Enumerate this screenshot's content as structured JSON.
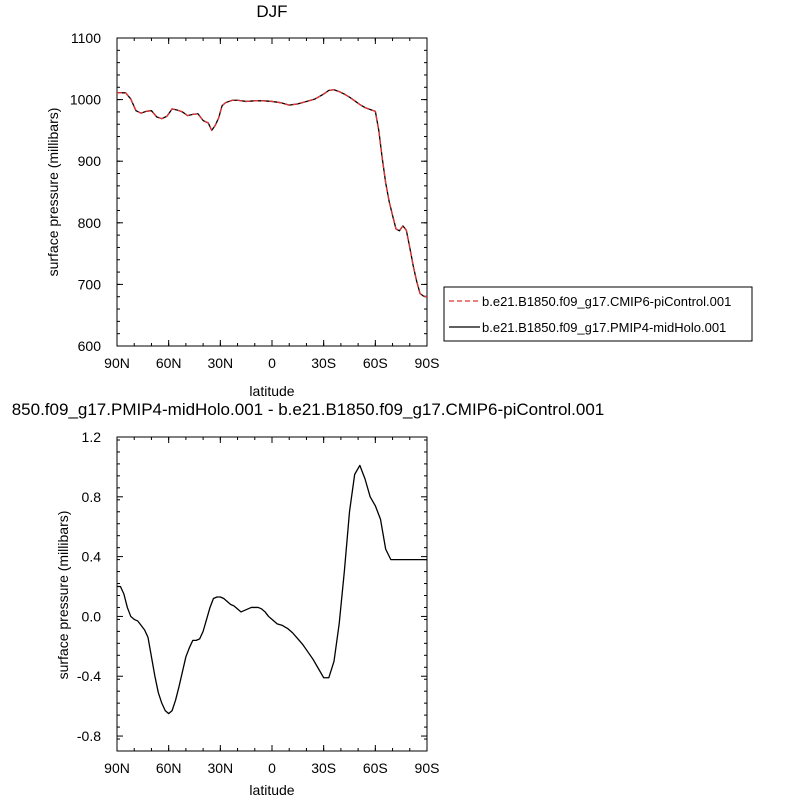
{
  "chart_data": [
    {
      "type": "line",
      "title": "DJF",
      "xlabel": "latitude",
      "ylabel": "surface pressure (millibars)",
      "xlim": [
        90,
        -90
      ],
      "ylim": [
        600,
        1100
      ],
      "x_ticks": [
        {
          "value": 90,
          "label": "90N"
        },
        {
          "value": 60,
          "label": "60N"
        },
        {
          "value": 30,
          "label": "30N"
        },
        {
          "value": 0,
          "label": "0"
        },
        {
          "value": -30,
          "label": "30S"
        },
        {
          "value": -60,
          "label": "60S"
        },
        {
          "value": -90,
          "label": "90S"
        }
      ],
      "y_ticks": [
        {
          "value": 600,
          "label": "600"
        },
        {
          "value": 700,
          "label": "700"
        },
        {
          "value": 800,
          "label": "800"
        },
        {
          "value": 900,
          "label": "900"
        },
        {
          "value": 1000,
          "label": "1000"
        },
        {
          "value": 1100,
          "label": "1100"
        }
      ],
      "grid": false,
      "legend_position": "right",
      "series": [
        {
          "name": "b.e21.B1850.f09_g17.CMIP6-piControl.001",
          "color": "#e53030",
          "dash": "dashed",
          "x": [
            90,
            85,
            82,
            79,
            76,
            73,
            70,
            67,
            64,
            61,
            58,
            55,
            52,
            49,
            46,
            43,
            40,
            37,
            35,
            33,
            31,
            29,
            27,
            25,
            23,
            20,
            15,
            10,
            5,
            0,
            -5,
            -10,
            -15,
            -20,
            -25,
            -30,
            -33,
            -36,
            -39,
            -42,
            -45,
            -48,
            -51,
            -54,
            -57,
            -60,
            -62,
            -64,
            -66,
            -68,
            -70,
            -72,
            -74,
            -76,
            -78,
            -80,
            -82,
            -84,
            -86,
            -88,
            -90
          ],
          "y": [
            1011,
            1011,
            1001,
            982,
            978,
            981,
            982,
            972,
            969,
            973,
            985,
            983,
            980,
            974,
            976,
            977,
            966,
            962,
            950,
            958,
            970,
            990,
            995,
            997,
            999,
            999,
            997,
            998,
            998,
            997,
            995,
            991,
            993,
            997,
            1001,
            1009,
            1015,
            1016,
            1013,
            1009,
            1004,
            998,
            992,
            987,
            984,
            981,
            950,
            905,
            865,
            835,
            812,
            790,
            787,
            795,
            788,
            760,
            730,
            705,
            685,
            681,
            680
          ]
        },
        {
          "name": "b.e21.B1850.f09_g17.PMIP4-midHolo.001",
          "color": "#000000",
          "dash": "solid",
          "x": [
            90,
            85,
            82,
            79,
            76,
            73,
            70,
            67,
            64,
            61,
            58,
            55,
            52,
            49,
            46,
            43,
            40,
            37,
            35,
            33,
            31,
            29,
            27,
            25,
            23,
            20,
            15,
            10,
            5,
            0,
            -5,
            -10,
            -15,
            -20,
            -25,
            -30,
            -33,
            -36,
            -39,
            -42,
            -45,
            -48,
            -51,
            -54,
            -57,
            -60,
            -62,
            -64,
            -66,
            -68,
            -70,
            -72,
            -74,
            -76,
            -78,
            -80,
            -82,
            -84,
            -86,
            -88,
            -90
          ],
          "y": [
            1011,
            1011,
            1001,
            982,
            978,
            981,
            982,
            972,
            969,
            973,
            985,
            983,
            980,
            974,
            976,
            977,
            966,
            962,
            950,
            958,
            970,
            990,
            995,
            997,
            999,
            999,
            997,
            998,
            998,
            997,
            995,
            991,
            993,
            997,
            1001,
            1009,
            1015,
            1016,
            1013,
            1009,
            1004,
            998,
            992,
            987,
            984,
            981,
            950,
            905,
            865,
            835,
            812,
            790,
            787,
            795,
            788,
            760,
            730,
            705,
            685,
            681,
            680
          ]
        }
      ]
    },
    {
      "type": "line",
      "title": "850.f09_g17.PMIP4-midHolo.001 - b.e21.B1850.f09_g17.CMIP6-piControl.001",
      "xlabel": "latitude",
      "ylabel": "surface pressure (millibars)",
      "xlim": [
        90,
        -90
      ],
      "ylim": [
        -0.9,
        1.2
      ],
      "x_ticks": [
        {
          "value": 90,
          "label": "90N"
        },
        {
          "value": 60,
          "label": "60N"
        },
        {
          "value": 30,
          "label": "30N"
        },
        {
          "value": 0,
          "label": "0"
        },
        {
          "value": -30,
          "label": "30S"
        },
        {
          "value": -60,
          "label": "60S"
        },
        {
          "value": -90,
          "label": "90S"
        }
      ],
      "y_ticks": [
        {
          "value": -0.8,
          "label": "-0.8"
        },
        {
          "value": -0.4,
          "label": "-0.4"
        },
        {
          "value": 0.0,
          "label": "0.0"
        },
        {
          "value": 0.4,
          "label": "0.4"
        },
        {
          "value": 0.8,
          "label": "0.8"
        },
        {
          "value": 1.2,
          "label": "1.2"
        }
      ],
      "grid": false,
      "series": [
        {
          "color": "#000000",
          "dash": "solid",
          "x": [
            90,
            88,
            86,
            84,
            82,
            80,
            78,
            76,
            74,
            72,
            70,
            68,
            66,
            64,
            62,
            60,
            58,
            56,
            54,
            52,
            50,
            48,
            46,
            44,
            42,
            40,
            38,
            36,
            34,
            32,
            30,
            28,
            26,
            24,
            22,
            20,
            18,
            16,
            14,
            12,
            10,
            8,
            6,
            4,
            2,
            0,
            -3,
            -6,
            -9,
            -12,
            -15,
            -18,
            -21,
            -24,
            -27,
            -30,
            -33,
            -36,
            -39,
            -42,
            -45,
            -48,
            -51,
            -54,
            -57,
            -60,
            -63,
            -66,
            -69,
            -72,
            -75,
            -78,
            -81,
            -84,
            -87,
            -90
          ],
          "y": [
            0.2,
            0.2,
            0.15,
            0.06,
            0.0,
            -0.02,
            -0.03,
            -0.06,
            -0.09,
            -0.14,
            -0.27,
            -0.4,
            -0.51,
            -0.58,
            -0.63,
            -0.65,
            -0.63,
            -0.56,
            -0.47,
            -0.37,
            -0.27,
            -0.21,
            -0.16,
            -0.16,
            -0.15,
            -0.1,
            -0.02,
            0.06,
            0.12,
            0.13,
            0.13,
            0.12,
            0.1,
            0.08,
            0.07,
            0.05,
            0.03,
            0.04,
            0.05,
            0.06,
            0.06,
            0.06,
            0.05,
            0.03,
            0.0,
            -0.02,
            -0.05,
            -0.06,
            -0.08,
            -0.11,
            -0.15,
            -0.19,
            -0.24,
            -0.29,
            -0.35,
            -0.41,
            -0.41,
            -0.3,
            -0.05,
            0.3,
            0.7,
            0.95,
            1.01,
            0.92,
            0.8,
            0.74,
            0.65,
            0.45,
            0.38,
            0.38,
            0.38,
            0.38,
            0.38,
            0.38,
            0.38,
            0.38
          ]
        }
      ]
    }
  ]
}
